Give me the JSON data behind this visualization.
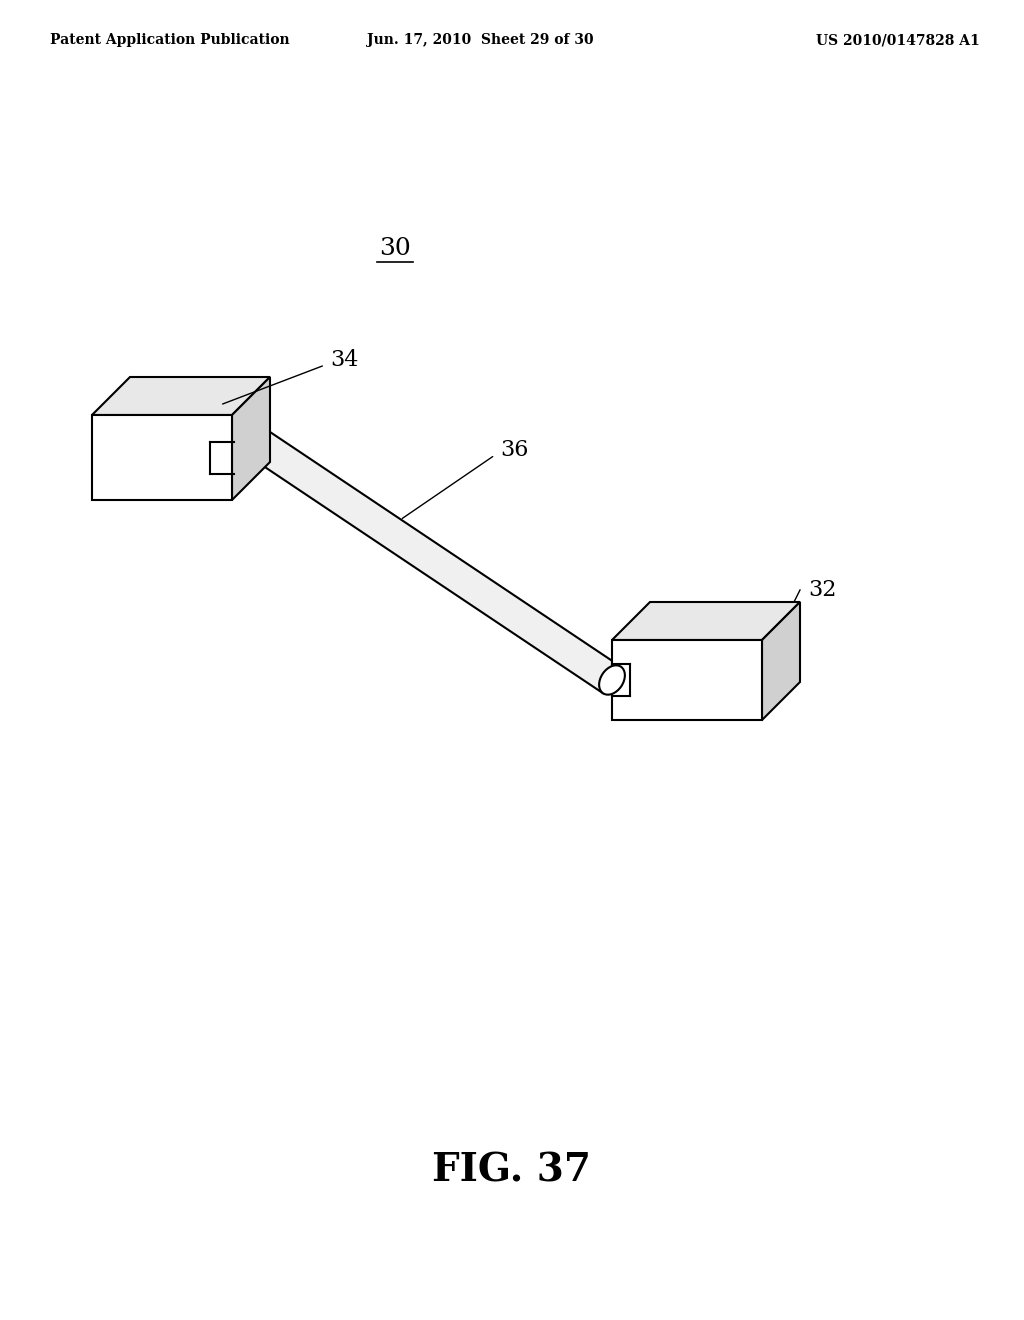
{
  "background_color": "#ffffff",
  "line_color": "#000000",
  "header_left": "Patent Application Publication",
  "header_mid": "Jun. 17, 2010  Sheet 29 of 30",
  "header_right": "US 2010/0147828 A1",
  "fig_label": "FIG. 37",
  "label_30": "30",
  "label_32": "32",
  "label_34": "34",
  "label_36": "36",
  "header_fontsize": 10,
  "fig_label_fontsize": 28,
  "ref_fontsize": 16
}
